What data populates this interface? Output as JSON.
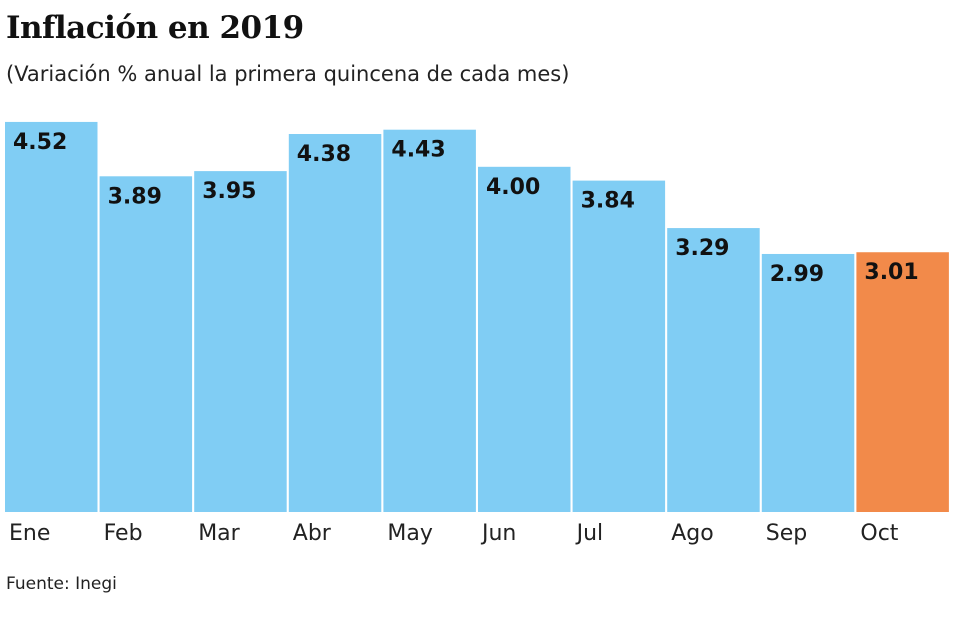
{
  "chart_data": {
    "type": "bar",
    "title": "Inflación en 2019",
    "subtitle": "(Variación % anual la primera quincena de cada mes)",
    "categories": [
      "Ene",
      "Feb",
      "Mar",
      "Abr",
      "May",
      "Jun",
      "Jul",
      "Ago",
      "Sep",
      "Oct"
    ],
    "values": [
      4.52,
      3.89,
      3.95,
      4.38,
      4.43,
      4.0,
      3.84,
      3.29,
      2.99,
      3.01
    ],
    "value_labels": [
      "4.52",
      "3.89",
      "3.95",
      "4.38",
      "4.43",
      "4.00",
      "3.84",
      "3.29",
      "2.99",
      "3.01"
    ],
    "ylim": [
      0,
      4.52
    ],
    "grid": false,
    "legend": "none",
    "source": "Fuente: Inegi",
    "colors": {
      "default": "#80cdf4",
      "highlight": "#f28a4a"
    },
    "highlight_index": 9
  }
}
